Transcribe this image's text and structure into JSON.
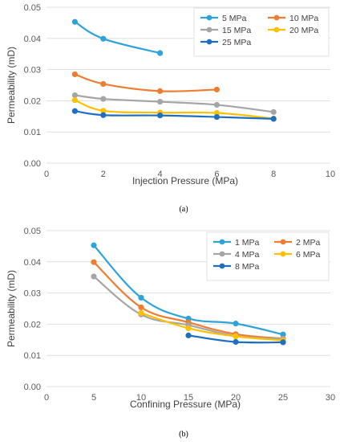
{
  "chart_data": [
    {
      "type": "line",
      "xlabel": "Injection Pressure (MPa)",
      "ylabel": "Permeability (mD)",
      "xlim": [
        0,
        10
      ],
      "ylim": [
        0,
        0.05
      ],
      "x_ticks": [
        "0",
        "2",
        "4",
        "6",
        "8",
        "10"
      ],
      "y_ticks": [
        "0.00",
        "0.01",
        "0.02",
        "0.03",
        "0.04",
        "0.05"
      ],
      "grid": true,
      "legend_position": "top-right",
      "sub_label": "(a)",
      "series": [
        {
          "name": "5 MPa",
          "color": "#2ea3d9",
          "x": [
            1,
            2,
            4
          ],
          "y": [
            0.0453,
            0.0399,
            0.0353
          ]
        },
        {
          "name": "10 MPa",
          "color": "#ed7d31",
          "x": [
            1,
            2,
            4,
            6
          ],
          "y": [
            0.0285,
            0.0254,
            0.0231,
            0.0236
          ]
        },
        {
          "name": "15 MPa",
          "color": "#a5a5a5",
          "x": [
            1,
            2,
            4,
            6,
            8
          ],
          "y": [
            0.0218,
            0.0206,
            0.0197,
            0.0187,
            0.0164
          ]
        },
        {
          "name": "20 MPa",
          "color": "#ffc000",
          "x": [
            1,
            2,
            4,
            6,
            8
          ],
          "y": [
            0.0202,
            0.0168,
            0.0162,
            0.0161,
            0.0143
          ]
        },
        {
          "name": "25 MPa",
          "color": "#1f6fbf",
          "x": [
            1,
            2,
            4,
            6,
            8
          ],
          "y": [
            0.0167,
            0.0154,
            0.0153,
            0.0148,
            0.0142
          ]
        }
      ]
    },
    {
      "type": "line",
      "xlabel": "Confining Pressure (MPa)",
      "ylabel": "Permeability (mD)",
      "xlim": [
        0,
        30
      ],
      "ylim": [
        0,
        0.05
      ],
      "x_ticks": [
        "0",
        "5",
        "10",
        "15",
        "20",
        "25",
        "30"
      ],
      "y_ticks": [
        "0.00",
        "0.01",
        "0.02",
        "0.03",
        "0.04",
        "0.05"
      ],
      "grid": true,
      "legend_position": "top-right",
      "sub_label": "(b)",
      "series": [
        {
          "name": "1 MPa",
          "color": "#2ea3d9",
          "x": [
            5,
            10,
            15,
            20,
            25
          ],
          "y": [
            0.0453,
            0.0285,
            0.0218,
            0.0202,
            0.0167
          ]
        },
        {
          "name": "2 MPa",
          "color": "#ed7d31",
          "x": [
            5,
            10,
            15,
            20,
            25
          ],
          "y": [
            0.0399,
            0.0254,
            0.0206,
            0.0168,
            0.0154
          ]
        },
        {
          "name": "4 MPa",
          "color": "#a5a5a5",
          "x": [
            5,
            10,
            15,
            20,
            25
          ],
          "y": [
            0.0353,
            0.0231,
            0.0197,
            0.0162,
            0.0153
          ]
        },
        {
          "name": "6 MPa",
          "color": "#ffc000",
          "x": [
            10,
            15,
            20,
            25
          ],
          "y": [
            0.0236,
            0.0187,
            0.0161,
            0.0148
          ]
        },
        {
          "name": "8 MPa",
          "color": "#1f6fbf",
          "x": [
            15,
            20,
            25
          ],
          "y": [
            0.0164,
            0.0143,
            0.0142
          ]
        }
      ]
    }
  ]
}
